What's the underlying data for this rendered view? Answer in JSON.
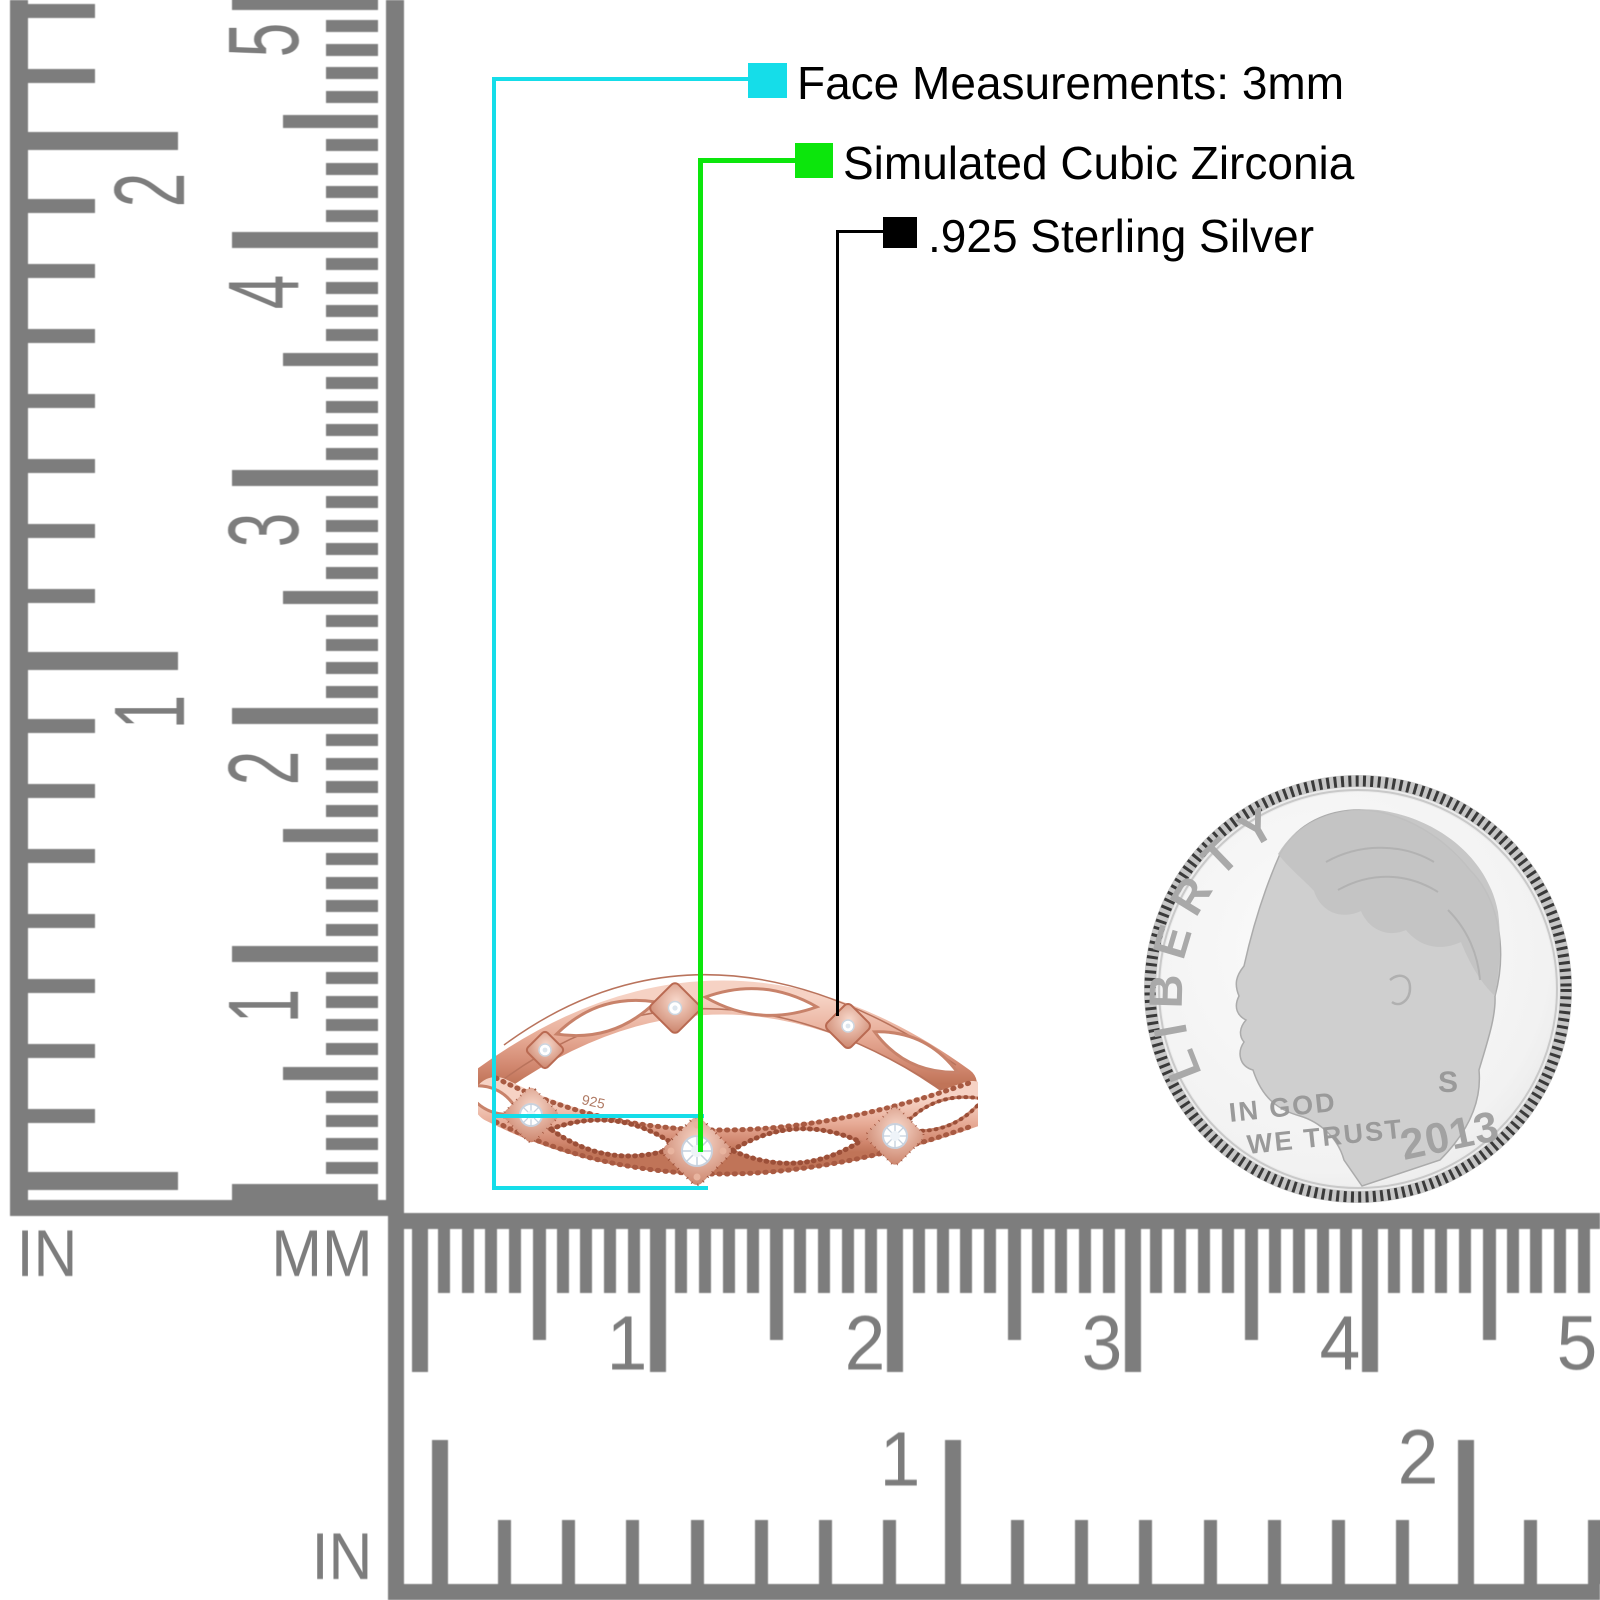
{
  "annotations": {
    "items": [
      {
        "label": "Face Measurements: 3mm",
        "marker_color": "#15dde9"
      },
      {
        "label": "Simulated Cubic Zirconia",
        "marker_color": "#0ce60c"
      },
      {
        "label": ".925 Sterling Silver",
        "marker_color": "#000000"
      }
    ]
  },
  "rulers": {
    "tick_color": "#7d7d7d",
    "vertical": {
      "in_label": "IN",
      "mm_label": "MM",
      "in_numbers": [
        "2",
        "1"
      ],
      "mm_numbers": [
        "5",
        "4",
        "3",
        "2",
        "1"
      ]
    },
    "horizontal": {
      "in_label": "IN",
      "mm_numbers": [
        "1",
        "2",
        "3",
        "4",
        "5"
      ],
      "in_numbers": [
        "1",
        "2"
      ]
    }
  },
  "ring": {
    "stamp": "925",
    "metal_color": "#e2a48f",
    "stone_color": "#ffffff"
  },
  "coin": {
    "legend": "LIBERTY",
    "motto_line1": "IN GOD",
    "motto_line2": "WE TRUST",
    "mint_mark": "S",
    "year": "2013"
  }
}
